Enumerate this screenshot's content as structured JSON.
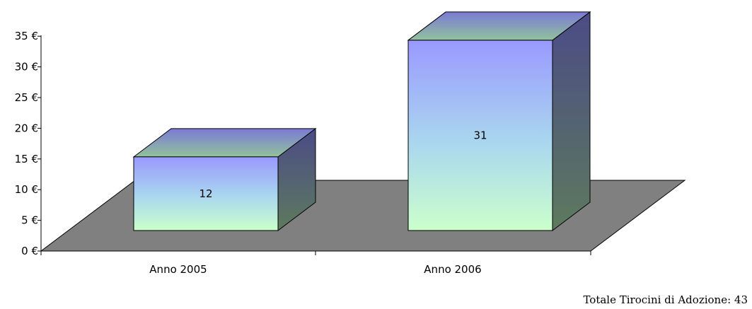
{
  "chart_data": {
    "type": "bar",
    "categories": [
      "Anno 2005",
      "Anno 2006"
    ],
    "values": [
      12,
      31
    ],
    "data_labels": [
      "12",
      "31"
    ],
    "y_ticks": [
      {
        "value": 0,
        "label": "0 €"
      },
      {
        "value": 5,
        "label": "5 €"
      },
      {
        "value": 10,
        "label": "10 €"
      },
      {
        "value": 15,
        "label": "15 €"
      },
      {
        "value": 20,
        "label": "20 €"
      },
      {
        "value": 25,
        "label": "25 €"
      },
      {
        "value": 30,
        "label": "30 €"
      },
      {
        "value": 35,
        "label": "35 €"
      }
    ],
    "ylim": [
      0,
      35
    ],
    "grid": false,
    "three_d": true,
    "colors": {
      "bar_top_gradient": "#9999ff",
      "bar_bottom_gradient": "#ccffcc",
      "bar_side": "#4d5a7a",
      "floor": "#808080",
      "axis": "#000000"
    }
  },
  "footer": {
    "note": "Totale Tirocini di Adozione: 43"
  }
}
